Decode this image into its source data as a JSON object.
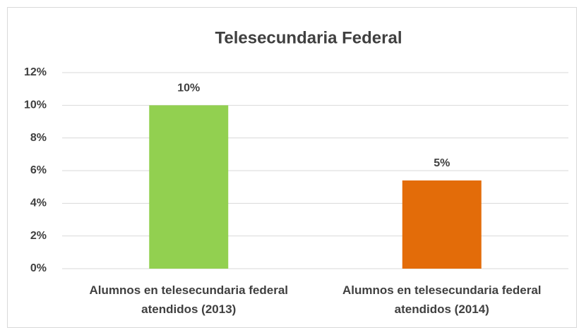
{
  "chart_data": {
    "type": "bar",
    "title": "Telesecundaria Federal",
    "categories": [
      "Alumnos en telesecundaria federal atendidos (2013)",
      "Alumnos en telesecundaria federal atendidos (2014)"
    ],
    "values": [
      10,
      5.4
    ],
    "value_labels": [
      "10%",
      "5%"
    ],
    "colors": [
      "#92d050",
      "#e36c09"
    ],
    "ylim": [
      0,
      12
    ],
    "yticks": [
      {
        "value": 0,
        "label": "0%"
      },
      {
        "value": 2,
        "label": "2%"
      },
      {
        "value": 4,
        "label": "4%"
      },
      {
        "value": 6,
        "label": "6%"
      },
      {
        "value": 8,
        "label": "8%"
      },
      {
        "value": 10,
        "label": "10%"
      },
      {
        "value": 12,
        "label": "12%"
      }
    ],
    "grid": true
  }
}
